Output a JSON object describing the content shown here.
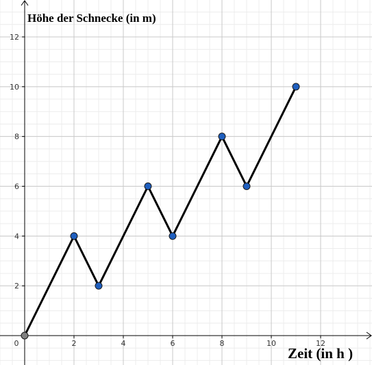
{
  "chart_data": {
    "type": "line",
    "y_label": "Höhe der Schnecke (in m)",
    "x_label": "Zeit (in h )",
    "x": [
      0,
      2,
      3,
      5,
      6,
      8,
      9,
      11
    ],
    "series": [
      {
        "color": "#000000",
        "marker_colors": [
          "#808080",
          "#1f5fbf",
          "#1f5fbf",
          "#1f5fbf",
          "#1f5fbf",
          "#1f5fbf",
          "#1f5fbf",
          "#1f5fbf"
        ],
        "values": [
          0,
          4,
          2,
          6,
          4,
          8,
          6,
          10
        ]
      }
    ],
    "xlim": [
      -1,
      14.083
    ],
    "ylim": [
      -1.181,
      13.483
    ],
    "xticks": [
      0,
      2,
      4,
      6,
      8,
      10,
      12
    ],
    "yticks": [
      2,
      4,
      6,
      8,
      10,
      12
    ],
    "grid": true
  }
}
